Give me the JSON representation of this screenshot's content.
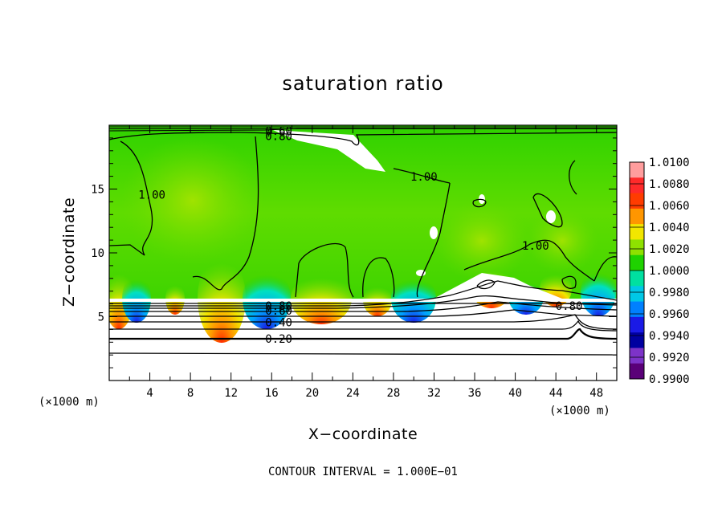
{
  "chart_data": {
    "type": "heatmap",
    "title": "saturation ratio",
    "xlabel": "X−coordinate",
    "ylabel": "Z−coordinate",
    "x_unit_label": "(×1000 m)",
    "y_unit_label": "(×1000 m)",
    "xlim": [
      0,
      50
    ],
    "ylim": [
      0,
      20
    ],
    "x_ticks": [
      4,
      8,
      12,
      16,
      20,
      24,
      28,
      32,
      36,
      40,
      44,
      48
    ],
    "y_ticks": [
      5,
      10,
      15
    ],
    "footer": "CONTOUR INTERVAL = 1.000E−01",
    "colorbar": {
      "labels": [
        "1.0100",
        "1.0080",
        "1.0060",
        "1.0040",
        "1.0020",
        "1.0000",
        "0.9980",
        "0.9960",
        "0.9940",
        "0.9920",
        "0.9900"
      ],
      "colors": [
        "#ff9d9d",
        "#ff2a2a",
        "#ff3c00",
        "#ff9600",
        "#f2e600",
        "#8ee100",
        "#1fd200",
        "#00e0a0",
        "#00c8e6",
        "#0080ff",
        "#1a1ae6",
        "#0000a0",
        "#7d33c8",
        "#5a0078"
      ]
    },
    "contour_labels": [
      {
        "text": "0.60",
        "x": 16.7,
        "z": 19.5
      },
      {
        "text": "0.80",
        "x": 16.7,
        "z": 19.1
      },
      {
        "text": "1.00",
        "x": 4.2,
        "z": 14.5
      },
      {
        "text": "1.00",
        "x": 31.0,
        "z": 15.9
      },
      {
        "text": "1.00",
        "x": 42.0,
        "z": 10.5
      },
      {
        "text": "0.80",
        "x": 16.7,
        "z": 5.8
      },
      {
        "text": "0.60",
        "x": 16.7,
        "z": 5.4
      },
      {
        "text": "0.40",
        "x": 16.7,
        "z": 4.5
      },
      {
        "text": "0.20",
        "x": 16.7,
        "z": 3.2
      },
      {
        "text": "0.80",
        "x": 45.3,
        "z": 5.8
      }
    ]
  }
}
